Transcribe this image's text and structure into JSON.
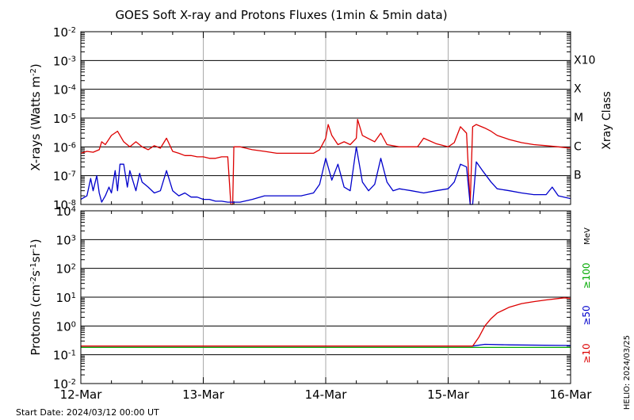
{
  "chart_data": [
    {
      "type": "line",
      "title": "GOES Soft X-ray and Protons Fluxes   (1min & 5min data)",
      "ylabel": "X-rays (Watts m-2)",
      "ylabel_parts": {
        "main": "X-rays (Watts m",
        "sup": "-2",
        "end": ")"
      },
      "yscale": "log",
      "ylim": [
        1e-08,
        0.01
      ],
      "ytick_exponents": [
        -8,
        -7,
        -6,
        -5,
        -4,
        -3,
        -2
      ],
      "grid": "horizontal at each decade; vertical at day boundaries",
      "right_axis_title": "Xray Class",
      "class_labels": [
        {
          "label": "X10",
          "value": 0.001
        },
        {
          "label": "X",
          "value": 0.0001
        },
        {
          "label": "M",
          "value": 1e-05
        },
        {
          "label": "C",
          "value": 1e-06
        },
        {
          "label": "B",
          "value": 1e-07
        }
      ],
      "x_days": [
        0,
        4
      ],
      "series": [
        {
          "color": "#dd0000",
          "x": [
            0,
            0.05,
            0.1,
            0.15,
            0.17,
            0.2,
            0.25,
            0.3,
            0.35,
            0.4,
            0.45,
            0.5,
            0.55,
            0.6,
            0.65,
            0.7,
            0.75,
            0.8,
            0.85,
            0.9,
            0.95,
            1.0,
            1.05,
            1.1,
            1.15,
            1.2,
            1.225,
            1.24,
            1.25,
            1.3,
            1.4,
            1.5,
            1.6,
            1.7,
            1.8,
            1.9,
            1.95,
            2.0,
            2.02,
            2.05,
            2.1,
            2.15,
            2.2,
            2.25,
            2.26,
            2.3,
            2.4,
            2.45,
            2.5,
            2.6,
            2.7,
            2.75,
            2.8,
            2.9,
            3.0,
            3.05,
            3.1,
            3.15,
            3.18,
            3.2,
            3.23,
            3.3,
            3.35,
            3.4,
            3.5,
            3.6,
            3.7,
            3.8,
            3.9,
            4.0
          ],
          "values": [
            6e-07,
            7e-07,
            6.5e-07,
            8e-07,
            1.5e-06,
            1.2e-06,
            2.5e-06,
            3.5e-06,
            1.5e-06,
            1e-06,
            1.5e-06,
            1e-06,
            8e-07,
            1.1e-06,
            9e-07,
            2e-06,
            7e-07,
            6e-07,
            5e-07,
            5e-07,
            4.5e-07,
            4.5e-07,
            4e-07,
            4e-07,
            4.5e-07,
            4.5e-07,
            1e-08,
            1e-08,
            1e-06,
            1e-06,
            8e-07,
            7e-07,
            6e-07,
            6e-07,
            6e-07,
            6e-07,
            8e-07,
            2e-06,
            6e-06,
            2.5e-06,
            1.2e-06,
            1.5e-06,
            1.2e-06,
            2e-06,
            9e-06,
            2.5e-06,
            1.5e-06,
            3e-06,
            1.2e-06,
            1e-06,
            1e-06,
            1e-06,
            2e-06,
            1.3e-06,
            1e-06,
            1.4e-06,
            5e-06,
            3e-06,
            1e-08,
            5e-06,
            6e-06,
            4.5e-06,
            3.5e-06,
            2.5e-06,
            1.8e-06,
            1.4e-06,
            1.2e-06,
            1.1e-06,
            1e-06,
            9e-07
          ]
        },
        {
          "color": "#0000cc",
          "x": [
            0,
            0.05,
            0.08,
            0.1,
            0.13,
            0.15,
            0.17,
            0.2,
            0.23,
            0.25,
            0.28,
            0.3,
            0.32,
            0.35,
            0.38,
            0.4,
            0.45,
            0.48,
            0.5,
            0.55,
            0.6,
            0.65,
            0.7,
            0.75,
            0.8,
            0.85,
            0.9,
            0.95,
            1.0,
            1.05,
            1.1,
            1.15,
            1.2,
            1.3,
            1.4,
            1.5,
            1.6,
            1.7,
            1.8,
            1.9,
            1.95,
            2.0,
            2.05,
            2.1,
            2.15,
            2.2,
            2.25,
            2.3,
            2.35,
            2.4,
            2.45,
            2.5,
            2.55,
            2.6,
            2.7,
            2.8,
            2.9,
            3.0,
            3.05,
            3.1,
            3.15,
            3.18,
            3.2,
            3.23,
            3.28,
            3.35,
            3.4,
            3.5,
            3.6,
            3.7,
            3.8,
            3.85,
            3.9,
            4.0
          ],
          "values": [
            1.5e-08,
            2e-08,
            8e-08,
            3e-08,
            1e-07,
            2.5e-08,
            1.2e-08,
            2e-08,
            4e-08,
            2.5e-08,
            1.5e-07,
            3e-08,
            2.5e-07,
            2.5e-07,
            4e-08,
            1.5e-07,
            3e-08,
            1.2e-07,
            6e-08,
            4e-08,
            2.5e-08,
            3e-08,
            1.5e-07,
            3e-08,
            2e-08,
            2.5e-08,
            1.8e-08,
            1.8e-08,
            1.5e-08,
            1.5e-08,
            1.3e-08,
            1.3e-08,
            1.2e-08,
            1.2e-08,
            1.5e-08,
            2e-08,
            2e-08,
            2e-08,
            2e-08,
            2.5e-08,
            5e-08,
            4e-07,
            7e-08,
            2.5e-07,
            4e-08,
            3e-08,
            1e-06,
            6e-08,
            3e-08,
            5e-08,
            4e-07,
            6e-08,
            3e-08,
            3.5e-08,
            3e-08,
            2.5e-08,
            3e-08,
            3.5e-08,
            6e-08,
            2.5e-07,
            2e-07,
            1e-08,
            1e-08,
            3e-07,
            1.5e-07,
            6e-08,
            3.5e-08,
            3e-08,
            2.5e-08,
            2.2e-08,
            2.2e-08,
            4e-08,
            2e-08,
            1.6e-08
          ]
        }
      ]
    },
    {
      "type": "line",
      "ylabel": "Protons (cm-2s-1sr-1)",
      "ylabel_parts": {
        "main": "Protons (cm",
        "s1": "-2",
        "mid": "s",
        "s2": "-1",
        "mid2": "sr",
        "s3": "-1",
        "end": ")"
      },
      "yscale": "log",
      "ylim": [
        0.01,
        10000
      ],
      "ytick_exponents": [
        -2,
        -1,
        0,
        1,
        2,
        3,
        4
      ],
      "threshold_line": 10,
      "legend_unit": "MeV",
      "legend": [
        {
          "label": "≥100",
          "color": "#00aa00"
        },
        {
          "label": "≥50",
          "color": "#0000cc"
        },
        {
          "label": "≥10",
          "color": "#dd0000"
        }
      ],
      "x_days": [
        0,
        4
      ],
      "series": [
        {
          "color": "#00aa00",
          "x": [
            0,
            1,
            2,
            3,
            3.2,
            4.0
          ],
          "values": [
            0.18,
            0.18,
            0.18,
            0.18,
            0.18,
            0.18
          ]
        },
        {
          "color": "#0000cc",
          "x": [
            0,
            1,
            2,
            3,
            3.2,
            3.3,
            3.5,
            4.0
          ],
          "values": [
            0.2,
            0.2,
            0.2,
            0.2,
            0.2,
            0.23,
            0.22,
            0.21
          ]
        },
        {
          "color": "#dd0000",
          "x": [
            0,
            1,
            2,
            3,
            3.2,
            3.25,
            3.3,
            3.35,
            3.4,
            3.5,
            3.6,
            3.7,
            3.8,
            3.9,
            3.95,
            4.0
          ],
          "values": [
            0.2,
            0.2,
            0.2,
            0.2,
            0.2,
            0.4,
            1.0,
            1.8,
            2.8,
            4.5,
            6.0,
            7.0,
            8.0,
            9.0,
            9.5,
            9.0
          ]
        }
      ]
    }
  ],
  "xaxis": {
    "tick_labels": [
      "12-Mar",
      "13-Mar",
      "14-Mar",
      "15-Mar",
      "16-Mar"
    ]
  },
  "footer": {
    "start_date": "Start Date: 2024/03/12 00:00 UT",
    "credit": "HELIO: 2024/03/25"
  }
}
